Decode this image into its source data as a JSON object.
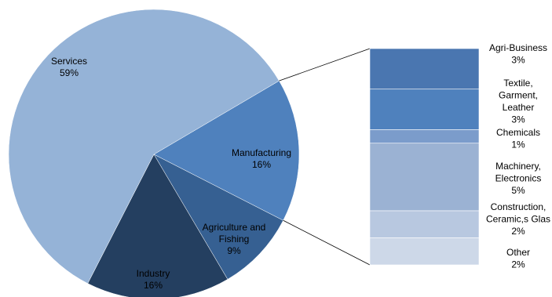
{
  "chart_data": {
    "type": "pie",
    "subtype": "pie-of-bar",
    "title": "",
    "legend": "none",
    "slices": [
      {
        "name": "Services",
        "value": 59,
        "label": "59%",
        "color": "#95b3d7"
      },
      {
        "name": "Manufacturing",
        "value": 16,
        "label": "16%",
        "color": "#4f81bd"
      },
      {
        "name": "Agriculture and Fishing",
        "value": 9,
        "label": "9%",
        "color": "#366092"
      },
      {
        "name": "Industry",
        "value": 16,
        "label": "16%",
        "color": "#243f60"
      }
    ],
    "breakdown_of": "Manufacturing",
    "bar_segments": [
      {
        "name": "Agri-Business",
        "value": 3,
        "label": "3%",
        "color": "#4a76b0"
      },
      {
        "name": "Textile, Garment, Leather",
        "value": 3,
        "label": "3%",
        "color": "#4f81bd"
      },
      {
        "name": "Chemicals",
        "value": 1,
        "label": "1%",
        "color": "#7b9ccb"
      },
      {
        "name": "Machinery, Electronics",
        "value": 5,
        "label": "5%",
        "color": "#9bb2d3"
      },
      {
        "name": "Construction, Ceramic,s Glas",
        "value": 2,
        "label": "2%",
        "color": "#b8c8e0"
      },
      {
        "name": "Other",
        "value": 2,
        "label": "2%",
        "color": "#cdd8e8"
      }
    ]
  }
}
